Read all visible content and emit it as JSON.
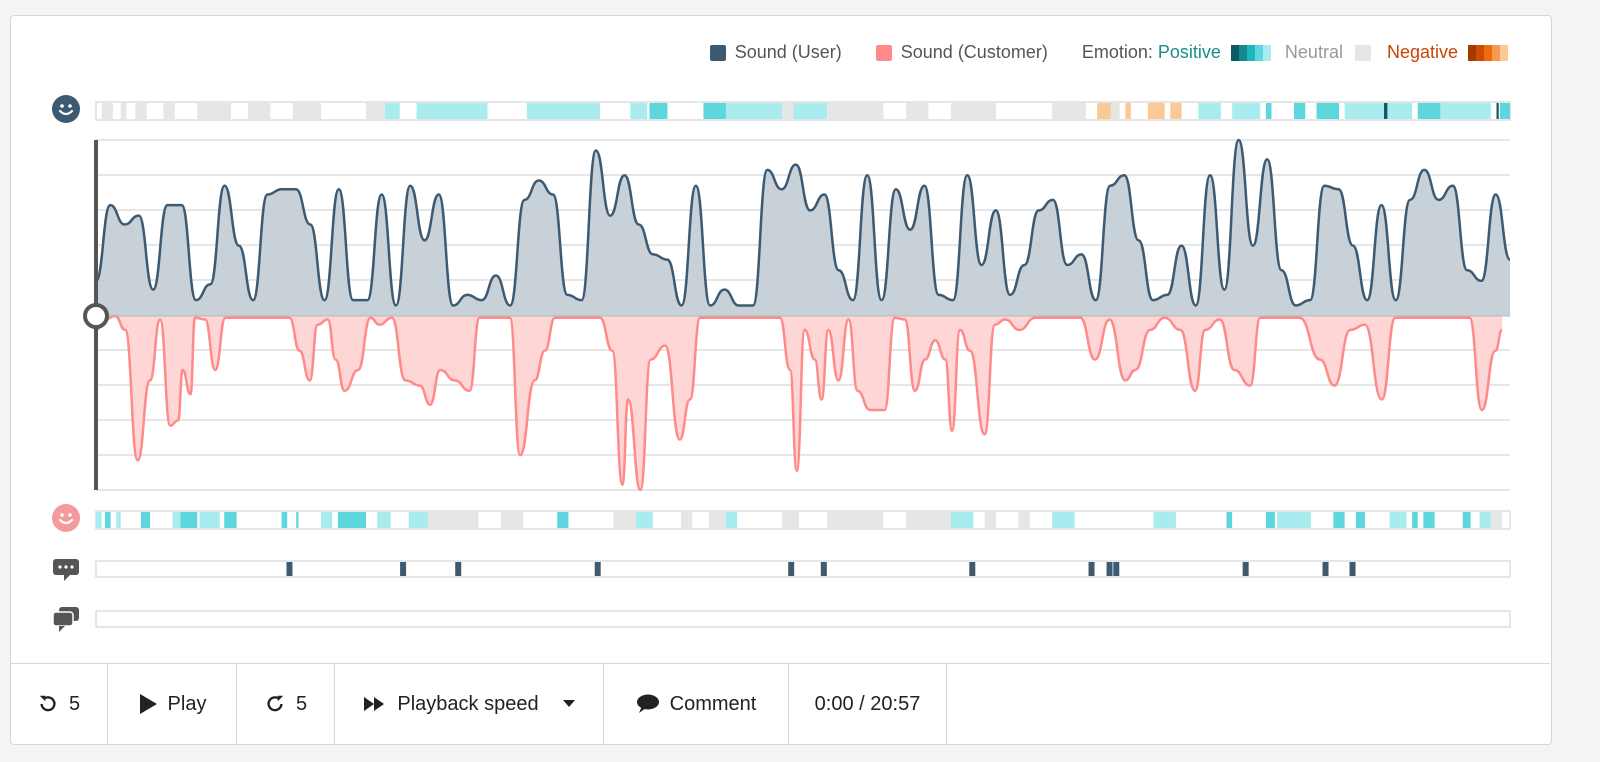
{
  "legend": {
    "user_label": "Sound (User)",
    "customer_label": "Sound (Customer)",
    "emotion_label": "Emotion:",
    "positive_label": "Positive",
    "neutral_label": "Neutral",
    "negative_label": "Negative"
  },
  "colors": {
    "user": "#3d5a73",
    "user_fill": "#c5cfd6",
    "customer": "#ff8a8a",
    "customer_fill": "#ffd6d6",
    "positive_text": "#1a8c8c",
    "negative_text": "#cc4400",
    "positive_scale": [
      "#0d5c63",
      "#138a93",
      "#1fb5bf",
      "#5ed6de",
      "#a8ecf0"
    ],
    "negative_scale": [
      "#a33a00",
      "#cc4c00",
      "#f06b10",
      "#f79a50",
      "#fcc895"
    ],
    "neutral": "#e6e6e6",
    "comment_marker": "#3d5a73"
  },
  "duration_seconds": 1257,
  "user_emotion": [
    [
      5,
      15,
      "neutral"
    ],
    [
      22,
      27,
      "neutral"
    ],
    [
      35,
      45,
      "neutral"
    ],
    [
      60,
      70,
      "neutral"
    ],
    [
      90,
      120,
      "neutral"
    ],
    [
      135,
      155,
      "neutral"
    ],
    [
      175,
      200,
      "neutral"
    ],
    [
      240,
      260,
      "neutral"
    ],
    [
      257,
      270,
      "light"
    ],
    [
      285,
      348,
      "light"
    ],
    [
      383,
      448,
      "light"
    ],
    [
      475,
      490,
      "light"
    ],
    [
      560,
      610,
      "light"
    ],
    [
      620,
      650,
      "light"
    ],
    [
      492,
      508,
      "mid"
    ],
    [
      540,
      560,
      "mid"
    ],
    [
      610,
      620,
      "neutral"
    ],
    [
      650,
      700,
      "neutral"
    ],
    [
      720,
      740,
      "neutral"
    ],
    [
      760,
      800,
      "neutral"
    ],
    [
      850,
      880,
      "neutral"
    ],
    [
      900,
      910,
      "neutral"
    ],
    [
      890,
      902,
      "neg-light"
    ],
    [
      935,
      950,
      "neg-light"
    ],
    [
      955,
      965,
      "neg-light"
    ],
    [
      915,
      920,
      "neg-light"
    ],
    [
      980,
      1000,
      "light"
    ],
    [
      1010,
      1035,
      "light"
    ],
    [
      1110,
      1170,
      "light"
    ],
    [
      1190,
      1240,
      "light"
    ],
    [
      1040,
      1045,
      "mid"
    ],
    [
      1065,
      1075,
      "mid"
    ],
    [
      1085,
      1105,
      "mid"
    ],
    [
      1175,
      1195,
      "mid"
    ],
    [
      1248,
      1257,
      "mid"
    ],
    [
      1145,
      1148,
      "dark"
    ],
    [
      1245,
      1247,
      "dark"
    ]
  ],
  "customer_emotion": [
    [
      0,
      5,
      "light"
    ],
    [
      18,
      22,
      "light"
    ],
    [
      68,
      75,
      "light"
    ],
    [
      92,
      110,
      "light"
    ],
    [
      200,
      210,
      "light"
    ],
    [
      250,
      262,
      "light"
    ],
    [
      278,
      305,
      "light"
    ],
    [
      480,
      495,
      "light"
    ],
    [
      560,
      570,
      "light"
    ],
    [
      760,
      780,
      "light"
    ],
    [
      850,
      870,
      "light"
    ],
    [
      940,
      960,
      "light"
    ],
    [
      1050,
      1080,
      "light"
    ],
    [
      1150,
      1165,
      "light"
    ],
    [
      1230,
      1240,
      "light"
    ],
    [
      295,
      340,
      "neutral"
    ],
    [
      360,
      380,
      "neutral"
    ],
    [
      460,
      480,
      "neutral"
    ],
    [
      520,
      530,
      "neutral"
    ],
    [
      545,
      560,
      "neutral"
    ],
    [
      610,
      625,
      "neutral"
    ],
    [
      650,
      700,
      "neutral"
    ],
    [
      720,
      760,
      "neutral"
    ],
    [
      790,
      800,
      "neutral"
    ],
    [
      820,
      830,
      "neutral"
    ],
    [
      1240,
      1250,
      "neutral"
    ],
    [
      8,
      13,
      "mid"
    ],
    [
      40,
      48,
      "mid"
    ],
    [
      75,
      90,
      "mid"
    ],
    [
      114,
      125,
      "mid"
    ],
    [
      165,
      170,
      "mid"
    ],
    [
      178,
      180,
      "mid"
    ],
    [
      215,
      240,
      "mid"
    ],
    [
      410,
      420,
      "mid"
    ],
    [
      1005,
      1010,
      "mid"
    ],
    [
      1040,
      1048,
      "mid"
    ],
    [
      1100,
      1110,
      "mid"
    ],
    [
      1120,
      1128,
      "mid"
    ],
    [
      1170,
      1175,
      "mid"
    ],
    [
      1180,
      1190,
      "mid"
    ],
    [
      1215,
      1222,
      "mid"
    ]
  ],
  "comment_markers_seconds": [
    172,
    273,
    322,
    446,
    618,
    647,
    779,
    885,
    901,
    907,
    1022,
    1093,
    1117
  ],
  "user_sound": [
    0.2,
    0.63,
    0.52,
    0.57,
    0.15,
    0.63,
    0.63,
    0.09,
    0.18,
    0.74,
    0.4,
    0.09,
    0.69,
    0.72,
    0.72,
    0.52,
    0.09,
    0.72,
    0.09,
    0.09,
    0.69,
    0.06,
    0.74,
    0.43,
    0.69,
    0.06,
    0.12,
    0.09,
    0.23,
    0.06,
    0.66,
    0.77,
    0.69,
    0.12,
    0.09,
    0.94,
    0.57,
    0.8,
    0.52,
    0.35,
    0.32,
    0.06,
    0.74,
    0.06,
    0.15,
    0.06,
    0.06,
    0.83,
    0.72,
    0.86,
    0.6,
    0.69,
    0.26,
    0.09,
    0.8,
    0.09,
    0.72,
    0.49,
    0.74,
    0.12,
    0.09,
    0.8,
    0.29,
    0.6,
    0.12,
    0.29,
    0.6,
    0.66,
    0.29,
    0.35,
    0.09,
    0.74,
    0.8,
    0.43,
    0.09,
    0.12,
    0.4,
    0.06,
    0.8,
    0.15,
    1.0,
    0.4,
    0.89,
    0.26,
    0.06,
    0.09,
    0.74,
    0.72,
    0.4,
    0.09,
    0.63,
    0.09,
    0.66,
    0.83,
    0.66,
    0.74,
    0.26,
    0.2,
    0.69,
    0.32
  ],
  "customer_sound": [
    [
      0,
      0.08
    ],
    [
      8,
      0.02
    ],
    [
      17,
      0
    ],
    [
      26,
      0.08
    ],
    [
      37,
      0.83
    ],
    [
      48,
      0.37
    ],
    [
      57,
      0.02
    ],
    [
      66,
      0.63
    ],
    [
      73,
      0.6
    ],
    [
      77,
      0.31
    ],
    [
      84,
      0.45
    ],
    [
      88,
      0.01
    ],
    [
      97,
      0.02
    ],
    [
      106,
      0.31
    ],
    [
      115,
      0.01
    ],
    [
      128,
      0.01
    ],
    [
      172,
      0.01
    ],
    [
      181,
      0.2
    ],
    [
      190,
      0.37
    ],
    [
      197,
      0.05
    ],
    [
      206,
      0.02
    ],
    [
      213,
      0.25
    ],
    [
      221,
      0.43
    ],
    [
      233,
      0.31
    ],
    [
      244,
      0.01
    ],
    [
      252,
      0.05
    ],
    [
      263,
      0.01
    ],
    [
      275,
      0.37
    ],
    [
      288,
      0.4
    ],
    [
      297,
      0.51
    ],
    [
      306,
      0.31
    ],
    [
      319,
      0.37
    ],
    [
      332,
      0.43
    ],
    [
      341,
      0.01
    ],
    [
      368,
      0.01
    ],
    [
      377,
      0.8
    ],
    [
      390,
      0.37
    ],
    [
      399,
      0.2
    ],
    [
      408,
      0.01
    ],
    [
      448,
      0.01
    ],
    [
      459,
      0.2
    ],
    [
      468,
      0.97
    ],
    [
      473,
      0.48
    ],
    [
      484,
      1.0
    ],
    [
      493,
      0.25
    ],
    [
      506,
      0.17
    ],
    [
      519,
      0.71
    ],
    [
      528,
      0.48
    ],
    [
      537,
      0.01
    ],
    [
      608,
      0.01
    ],
    [
      617,
      0.31
    ],
    [
      623,
      0.89
    ],
    [
      630,
      0.08
    ],
    [
      639,
      0.25
    ],
    [
      645,
      0.48
    ],
    [
      651,
      0.08
    ],
    [
      660,
      0.37
    ],
    [
      669,
      0.02
    ],
    [
      677,
      0.43
    ],
    [
      688,
      0.54
    ],
    [
      701,
      0.54
    ],
    [
      710,
      0.01
    ],
    [
      719,
      0.02
    ],
    [
      728,
      0.43
    ],
    [
      737,
      0.25
    ],
    [
      746,
      0.14
    ],
    [
      755,
      0.25
    ],
    [
      761,
      0.66
    ],
    [
      768,
      0.08
    ],
    [
      777,
      0.2
    ],
    [
      790,
      0.68
    ],
    [
      799,
      0.05
    ],
    [
      808,
      0.02
    ],
    [
      821,
      0.08
    ],
    [
      835,
      0.01
    ],
    [
      875,
      0.01
    ],
    [
      888,
      0.25
    ],
    [
      901,
      0.02
    ],
    [
      915,
      0.37
    ],
    [
      924,
      0.31
    ],
    [
      937,
      0.08
    ],
    [
      950,
      0.01
    ],
    [
      964,
      0.08
    ],
    [
      977,
      0.43
    ],
    [
      986,
      0.08
    ],
    [
      999,
      0.02
    ],
    [
      1012,
      0.31
    ],
    [
      1026,
      0.4
    ],
    [
      1035,
      0.01
    ],
    [
      1070,
      0.01
    ],
    [
      1088,
      0.25
    ],
    [
      1101,
      0.4
    ],
    [
      1115,
      0.08
    ],
    [
      1128,
      0.05
    ],
    [
      1143,
      0.48
    ],
    [
      1155,
      0.01
    ],
    [
      1221,
      0.01
    ],
    [
      1232,
      0.54
    ],
    [
      1244,
      0.2
    ],
    [
      1250,
      0.08
    ]
  ],
  "playhead_seconds": 0,
  "controls": {
    "rewind_label": "5",
    "play_label": "Play",
    "forward_label": "5",
    "speed_label": "Playback speed",
    "comment_label": "Comment",
    "time_display": "0:00 / 20:57"
  }
}
